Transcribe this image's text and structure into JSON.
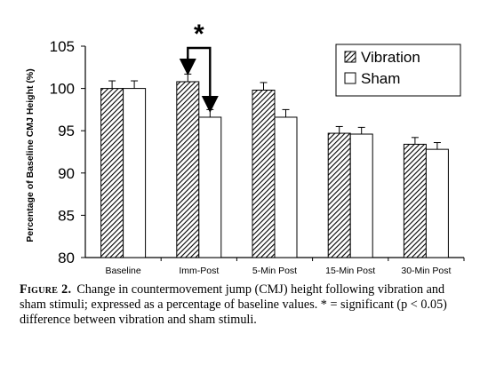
{
  "chart_data": {
    "type": "bar",
    "ylabel": "Percentage of Baseline CMJ Height (%)",
    "xlabel": "",
    "ylim": [
      80,
      105
    ],
    "yticks": [
      80,
      85,
      90,
      95,
      100,
      105
    ],
    "categories": [
      "Baseline",
      "Imm-Post",
      "5-Min Post",
      "15-Min Post",
      "30-Min Post"
    ],
    "series": [
      {
        "name": "Vibration",
        "pattern": "diagonal-hatch",
        "values": [
          100.0,
          100.8,
          99.8,
          94.7,
          93.4
        ],
        "errors": [
          0.9,
          0.9,
          0.9,
          0.8,
          0.8
        ]
      },
      {
        "name": "Sham",
        "pattern": "white",
        "values": [
          100.0,
          96.6,
          96.6,
          94.6,
          92.8
        ],
        "errors": [
          0.9,
          0.9,
          0.9,
          0.8,
          0.8
        ]
      }
    ],
    "legend_position": "top-right",
    "annotation": {
      "symbol": "*",
      "category": "Imm-Post",
      "meaning": "significant difference between Vibration and Sham"
    },
    "grid": false
  },
  "caption": {
    "label": "Figure 2.",
    "text": "Change in countermovement jump (CMJ) height following vibration and sham stimuli; expressed as a percentage of baseline values. * = significant (p < 0.05) difference between vibration and sham stimuli."
  },
  "colors": {
    "axis": "#000000",
    "bar_fill": "#ffffff",
    "hatch": "#000000"
  }
}
